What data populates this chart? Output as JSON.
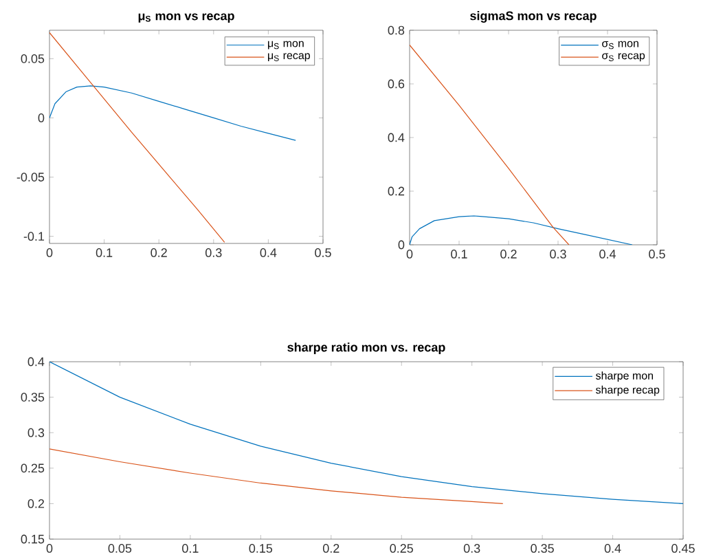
{
  "chart_data": [
    {
      "type": "line",
      "title": "μ$_{S}$ mon vs recap",
      "xlim": [
        0,
        0.5
      ],
      "ylim": [
        -0.106,
        0.074
      ],
      "xticks": [
        0,
        0.1,
        0.2,
        0.3,
        0.4,
        0.5
      ],
      "yticks": [
        -0.1,
        -0.05,
        0,
        0.05
      ],
      "legend": "top right",
      "series": [
        {
          "name": "μ$_{S}$ mon",
          "color": "#0072bd",
          "x": [
            0,
            0.01,
            0.03,
            0.05,
            0.075,
            0.1,
            0.15,
            0.2,
            0.25,
            0.3,
            0.35,
            0.4,
            0.45
          ],
          "values": [
            0,
            0.012,
            0.022,
            0.026,
            0.027,
            0.026,
            0.021,
            0.014,
            0.007,
            0.0,
            -0.007,
            -0.013,
            -0.019
          ]
        },
        {
          "name": "μ$_{S}$ recap",
          "color": "#d95319",
          "x": [
            0,
            0.075,
            0.15,
            0.22,
            0.27,
            0.32
          ],
          "values": [
            0.072,
            0.03,
            -0.012,
            -0.05,
            -0.077,
            -0.105
          ]
        }
      ]
    },
    {
      "type": "line",
      "title": "sigmaS mon vs recap",
      "xlim": [
        0,
        0.5
      ],
      "ylim": [
        0,
        0.8
      ],
      "xticks": [
        0,
        0.1,
        0.2,
        0.3,
        0.4,
        0.5
      ],
      "yticks": [
        0,
        0.2,
        0.4,
        0.6,
        0.8
      ],
      "legend": "top right",
      "series": [
        {
          "name": "σ$_{S}$ mon",
          "color": "#0072bd",
          "x": [
            0,
            0.005,
            0.02,
            0.05,
            0.1,
            0.13,
            0.2,
            0.25,
            0.3,
            0.35,
            0.4,
            0.45
          ],
          "values": [
            0,
            0.03,
            0.06,
            0.09,
            0.105,
            0.108,
            0.097,
            0.082,
            0.06,
            0.04,
            0.02,
            0.0
          ]
        },
        {
          "name": "σ$_{S}$ recap",
          "color": "#d95319",
          "x": [
            0,
            0.1,
            0.2,
            0.29,
            0.322
          ],
          "values": [
            0.745,
            0.52,
            0.285,
            0.065,
            0
          ]
        }
      ]
    },
    {
      "type": "line",
      "title": "sharpe ratio mon vs. recap",
      "xlim": [
        0,
        0.45
      ],
      "ylim": [
        0.15,
        0.4
      ],
      "xticks": [
        0,
        0.05,
        0.1,
        0.15,
        0.2,
        0.25,
        0.3,
        0.35,
        0.4,
        0.45
      ],
      "yticks": [
        0.15,
        0.2,
        0.25,
        0.3,
        0.35,
        0.4
      ],
      "legend": "top right",
      "series": [
        {
          "name": "sharpe mon",
          "color": "#0072bd",
          "x": [
            0,
            0.05,
            0.1,
            0.15,
            0.2,
            0.25,
            0.3,
            0.35,
            0.4,
            0.45
          ],
          "values": [
            0.4,
            0.35,
            0.312,
            0.281,
            0.257,
            0.238,
            0.224,
            0.214,
            0.206,
            0.2
          ]
        },
        {
          "name": "sharpe recap",
          "color": "#d95319",
          "x": [
            0,
            0.05,
            0.1,
            0.15,
            0.2,
            0.25,
            0.3,
            0.322
          ],
          "values": [
            0.277,
            0.259,
            0.243,
            0.229,
            0.218,
            0.209,
            0.203,
            0.2
          ]
        }
      ]
    }
  ]
}
